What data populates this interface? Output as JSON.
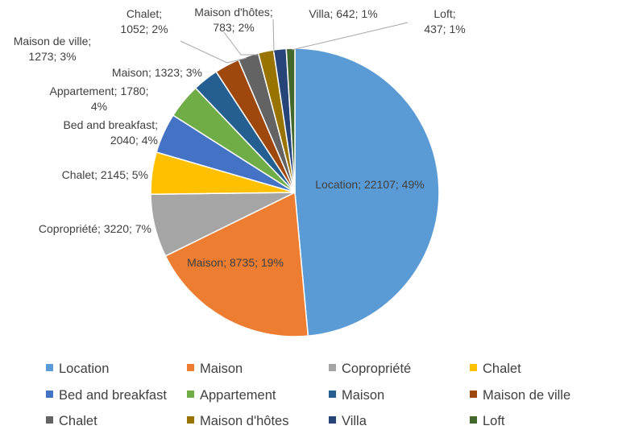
{
  "chart_data": {
    "type": "pie",
    "title": "",
    "slices": [
      {
        "label": "Location",
        "value": 22107,
        "percent": "49%",
        "color": "#5b9bd5"
      },
      {
        "label": "Maison",
        "value": 8735,
        "percent": "19%",
        "color": "#ed7d31"
      },
      {
        "label": "Copropriété",
        "value": 3220,
        "percent": "7%",
        "color": "#a5a5a5"
      },
      {
        "label": "Chalet",
        "value": 2145,
        "percent": "5%",
        "color": "#ffc000"
      },
      {
        "label": "Bed and breakfast",
        "value": 2040,
        "percent": "4%",
        "color": "#4472c4"
      },
      {
        "label": "Appartement",
        "value": 1780,
        "percent": "4%",
        "color": "#70ad47"
      },
      {
        "label": "Maison",
        "value": 1323,
        "percent": "3%",
        "color": "#255e91"
      },
      {
        "label": "Maison de ville",
        "value": 1273,
        "percent": "3%",
        "color": "#9e480e"
      },
      {
        "label": "Chalet",
        "value": 1052,
        "percent": "2%",
        "color": "#636363"
      },
      {
        "label": "Maison d'hôtes",
        "value": 783,
        "percent": "2%",
        "color": "#997300"
      },
      {
        "label": "Villa",
        "value": 642,
        "percent": "1%",
        "color": "#264478"
      },
      {
        "label": "Loft",
        "value": 437,
        "percent": "1%",
        "color": "#43682b"
      }
    ],
    "data_labels": [
      [
        "Location; 22107; 49%"
      ],
      [
        "Maison; 8735; 19%"
      ],
      [
        "Copropriété; 3220; 7%"
      ],
      [
        "Chalet; 2145; 5%"
      ],
      [
        "Bed and breakfast;",
        "2040; 4%"
      ],
      [
        "Appartement; 1780;",
        "4%"
      ],
      [
        "Maison; 1323; 3%"
      ],
      [
        "Maison de ville;",
        "1273; 3%"
      ],
      [
        "Chalet;",
        "1052; 2%"
      ],
      [
        "Maison d'hôtes;",
        "783; 2%"
      ],
      [
        "Villa; 642; 1%"
      ],
      [
        "Loft;",
        "437; 1%"
      ]
    ],
    "legend_position": "bottom",
    "leader_color": "#a6a6a6",
    "text_color": "#404040"
  }
}
